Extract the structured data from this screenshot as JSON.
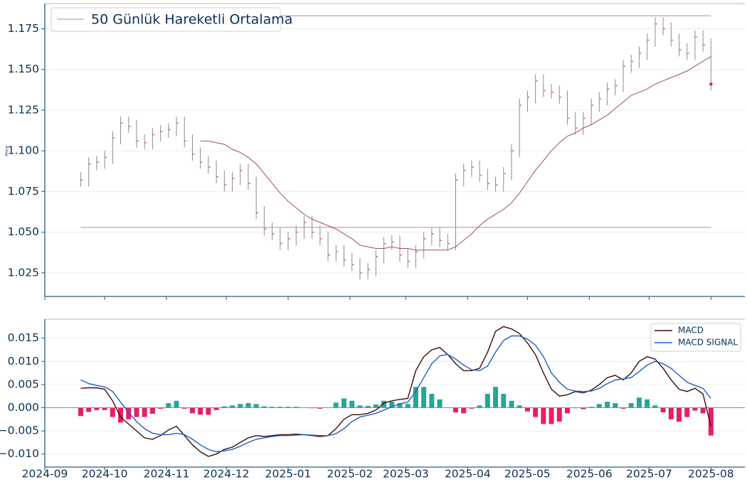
{
  "chart_data": [
    {
      "type": "ohlc",
      "ylabel": "Price",
      "color": "#8c8c8c",
      "close_color": "#d66a8a",
      "last_color": "#e8203f",
      "x": [
        "2024-09-19",
        "2024-09-23",
        "2024-09-27",
        "2024-10-01",
        "2024-10-05",
        "2024-10-09",
        "2024-10-13",
        "2024-10-17",
        "2024-10-21",
        "2024-10-25",
        "2024-10-29",
        "2024-11-02",
        "2024-11-06",
        "2024-11-10",
        "2024-11-14",
        "2024-11-18",
        "2024-11-22",
        "2024-11-26",
        "2024-11-30",
        "2024-12-04",
        "2024-12-08",
        "2024-12-12",
        "2024-12-16",
        "2024-12-20",
        "2024-12-24",
        "2024-12-28",
        "2025-01-01",
        "2025-01-05",
        "2025-01-09",
        "2025-01-13",
        "2025-01-17",
        "2025-01-21",
        "2025-01-25",
        "2025-01-29",
        "2025-02-02",
        "2025-02-06",
        "2025-02-10",
        "2025-02-14",
        "2025-02-18",
        "2025-02-22",
        "2025-02-26",
        "2025-03-02",
        "2025-03-06",
        "2025-03-10",
        "2025-03-14",
        "2025-03-18",
        "2025-03-22",
        "2025-03-26",
        "2025-03-30",
        "2025-04-03",
        "2025-04-07",
        "2025-04-11",
        "2025-04-15",
        "2025-04-19",
        "2025-04-23",
        "2025-04-27",
        "2025-05-01",
        "2025-05-05",
        "2025-05-09",
        "2025-05-13",
        "2025-05-17",
        "2025-05-21",
        "2025-05-25",
        "2025-05-29",
        "2025-06-02",
        "2025-06-06",
        "2025-06-10",
        "2025-06-14",
        "2025-06-18",
        "2025-06-22",
        "2025-06-26",
        "2025-06-30",
        "2025-07-04",
        "2025-07-08",
        "2025-07-12",
        "2025-07-16",
        "2025-07-20",
        "2025-07-24",
        "2025-07-28",
        "2025-08-01"
      ],
      "high": [
        1.087,
        1.096,
        1.097,
        1.1,
        1.112,
        1.121,
        1.121,
        1.119,
        1.11,
        1.114,
        1.116,
        1.117,
        1.121,
        1.121,
        1.11,
        1.102,
        1.097,
        1.094,
        1.088,
        1.087,
        1.092,
        1.092,
        1.084,
        1.066,
        1.056,
        1.053,
        1.05,
        1.054,
        1.06,
        1.06,
        1.054,
        1.05,
        1.042,
        1.042,
        1.037,
        1.034,
        1.031,
        1.039,
        1.047,
        1.048,
        1.048,
        1.04,
        1.042,
        1.05,
        1.053,
        1.053,
        1.049,
        1.086,
        1.092,
        1.094,
        1.094,
        1.089,
        1.084,
        1.09,
        1.104,
        1.132,
        1.137,
        1.147,
        1.147,
        1.141,
        1.14,
        1.137,
        1.124,
        1.124,
        1.132,
        1.136,
        1.142,
        1.144,
        1.156,
        1.159,
        1.164,
        1.172,
        1.182,
        1.182,
        1.179,
        1.172,
        1.166,
        1.174,
        1.174,
        1.169
      ],
      "low": [
        1.078,
        1.078,
        1.088,
        1.089,
        1.092,
        1.104,
        1.111,
        1.102,
        1.101,
        1.101,
        1.106,
        1.108,
        1.109,
        1.102,
        1.094,
        1.089,
        1.086,
        1.08,
        1.075,
        1.075,
        1.079,
        1.076,
        1.058,
        1.048,
        1.045,
        1.039,
        1.039,
        1.042,
        1.046,
        1.046,
        1.042,
        1.032,
        1.032,
        1.029,
        1.026,
        1.021,
        1.021,
        1.023,
        1.031,
        1.039,
        1.032,
        1.028,
        1.028,
        1.034,
        1.042,
        1.041,
        1.039,
        1.039,
        1.078,
        1.084,
        1.081,
        1.076,
        1.075,
        1.075,
        1.082,
        1.096,
        1.124,
        1.129,
        1.133,
        1.132,
        1.129,
        1.116,
        1.11,
        1.11,
        1.116,
        1.124,
        1.128,
        1.134,
        1.136,
        1.148,
        1.151,
        1.156,
        1.164,
        1.171,
        1.164,
        1.158,
        1.156,
        1.156,
        1.161,
        1.137
      ],
      "close": [
        1.082,
        1.092,
        1.093,
        1.096,
        1.108,
        1.117,
        1.115,
        1.106,
        1.105,
        1.11,
        1.112,
        1.113,
        1.117,
        1.106,
        1.098,
        1.093,
        1.09,
        1.084,
        1.079,
        1.083,
        1.088,
        1.08,
        1.062,
        1.052,
        1.049,
        1.043,
        1.046,
        1.05,
        1.056,
        1.05,
        1.046,
        1.036,
        1.038,
        1.033,
        1.03,
        1.025,
        1.027,
        1.035,
        1.043,
        1.044,
        1.036,
        1.032,
        1.038,
        1.046,
        1.049,
        1.045,
        1.043,
        1.082,
        1.088,
        1.09,
        1.085,
        1.08,
        1.079,
        1.086,
        1.1,
        1.128,
        1.133,
        1.143,
        1.137,
        1.136,
        1.133,
        1.12,
        1.114,
        1.12,
        1.128,
        1.132,
        1.138,
        1.14,
        1.152,
        1.155,
        1.16,
        1.168,
        1.178,
        1.175,
        1.168,
        1.162,
        1.16,
        1.17,
        1.165,
        1.141
      ],
      "series": [
        {
          "name": "50 Günlük Hareketli Ortalama",
          "color": "#a24a6e",
          "legend_color": "#b8a8b0",
          "values": [
            null,
            null,
            null,
            null,
            null,
            null,
            null,
            null,
            null,
            null,
            null,
            null,
            null,
            null,
            null,
            1.106,
            1.106,
            1.105,
            1.104,
            1.101,
            1.099,
            1.096,
            1.092,
            1.086,
            1.08,
            1.074,
            1.069,
            1.065,
            1.061,
            1.058,
            1.056,
            1.054,
            1.052,
            1.049,
            1.046,
            1.042,
            1.041,
            1.04,
            1.04,
            1.041,
            1.04,
            1.04,
            1.039,
            1.039,
            1.039,
            1.039,
            1.039,
            1.041,
            1.045,
            1.049,
            1.054,
            1.058,
            1.061,
            1.064,
            1.068,
            1.074,
            1.081,
            1.088,
            1.094,
            1.1,
            1.105,
            1.109,
            1.111,
            1.114,
            1.116,
            1.119,
            1.122,
            1.126,
            1.13,
            1.134,
            1.136,
            1.138,
            1.141,
            1.143,
            1.145,
            1.147,
            1.149,
            1.152,
            1.155,
            1.158
          ]
        }
      ],
      "hlines": [
        1.183,
        1.053
      ],
      "hline_color": "#c9a3b3",
      "ylim": [
        1.0105,
        1.1905
      ],
      "yticks": [
        1.025,
        {
          "value": 1.05,
          "label": "1.050"
        },
        1.075,
        {
          "value": 1.1,
          "label": "1.100"
        },
        1.125,
        {
          "value": 1.15,
          "label": "1.150"
        },
        1.175
      ],
      "grid": true,
      "legend": "upper left"
    },
    {
      "type": "macd",
      "series": [
        {
          "name": "MACD",
          "color": "#3a0c0c",
          "values": [
            0.0042,
            0.0043,
            0.0043,
            0.004,
            0.0015,
            -0.002,
            -0.0035,
            -0.005,
            -0.0065,
            -0.0068,
            -0.006,
            -0.0048,
            -0.004,
            -0.006,
            -0.008,
            -0.0095,
            -0.0105,
            -0.01,
            -0.009,
            -0.0085,
            -0.0075,
            -0.0065,
            -0.006,
            -0.0062,
            -0.006,
            -0.0058,
            -0.0058,
            -0.0057,
            -0.0058,
            -0.006,
            -0.0062,
            -0.006,
            -0.0045,
            -0.0025,
            -0.0015,
            -0.0015,
            -0.0012,
            -0.0005,
            0.001,
            0.0015,
            0.0018,
            0.002,
            0.008,
            0.011,
            0.0125,
            0.013,
            0.0115,
            0.0095,
            0.008,
            0.008,
            0.0085,
            0.012,
            0.0165,
            0.0175,
            0.017,
            0.016,
            0.014,
            0.0115,
            0.0075,
            0.004,
            0.0025,
            0.0028,
            0.0035,
            0.0032,
            0.0038,
            0.005,
            0.0065,
            0.007,
            0.006,
            0.0075,
            0.01,
            0.011,
            0.0105,
            0.0085,
            0.006,
            0.004,
            0.0035,
            0.0042,
            0.003,
            -0.004
          ]
        },
        {
          "name": "MACD SIGNAL",
          "color": "#1f5fbf",
          "values": [
            0.006,
            0.0052,
            0.0048,
            0.0045,
            0.0035,
            0.0012,
            -0.001,
            -0.003,
            -0.0045,
            -0.0055,
            -0.0058,
            -0.0058,
            -0.0055,
            -0.0058,
            -0.0068,
            -0.008,
            -0.009,
            -0.0095,
            -0.0093,
            -0.009,
            -0.0083,
            -0.0075,
            -0.0068,
            -0.0065,
            -0.0062,
            -0.006,
            -0.006,
            -0.0059,
            -0.0058,
            -0.0059,
            -0.006,
            -0.006,
            -0.0056,
            -0.0045,
            -0.003,
            -0.002,
            -0.0016,
            -0.0012,
            -0.0005,
            0.0002,
            0.0008,
            0.0012,
            0.0035,
            0.0065,
            0.0095,
            0.0112,
            0.0115,
            0.0105,
            0.0092,
            0.0082,
            0.008,
            0.009,
            0.012,
            0.0145,
            0.0155,
            0.0155,
            0.0148,
            0.0135,
            0.011,
            0.0075,
            0.0055,
            0.004,
            0.0036,
            0.0035,
            0.0036,
            0.0042,
            0.0052,
            0.006,
            0.0062,
            0.0065,
            0.0078,
            0.0092,
            0.01,
            0.0095,
            0.0085,
            0.007,
            0.0055,
            0.0048,
            0.0042,
            0.002
          ]
        }
      ],
      "histogram": {
        "positive_color": "#26a69a",
        "negative_color": "#e91e63",
        "values": [
          -0.0018,
          -0.0009,
          -0.0005,
          -0.0005,
          -0.002,
          -0.0032,
          -0.0025,
          -0.002,
          -0.002,
          -0.0013,
          -0.0002,
          0.001,
          0.0015,
          -0.0002,
          -0.0012,
          -0.0015,
          -0.0015,
          -0.0005,
          0.0003,
          0.0005,
          0.0008,
          0.001,
          0.0008,
          0.0003,
          0.0002,
          0.0002,
          0.0002,
          0.0002,
          0,
          -0.0001,
          -0.0002,
          0,
          0.0011,
          0.002,
          0.0015,
          0.0005,
          0.0004,
          0.0007,
          0.0015,
          0.0013,
          0.001,
          0.0008,
          0.0045,
          0.0045,
          0.003,
          0.0018,
          0,
          -0.001,
          -0.0012,
          -0.0002,
          0.0005,
          0.003,
          0.0045,
          0.003,
          0.0015,
          0.0005,
          -0.0008,
          -0.002,
          -0.0035,
          -0.0035,
          -0.003,
          -0.0012,
          -0.0001,
          -0.0003,
          0.0002,
          0.0008,
          0.0013,
          0.001,
          -0.0002,
          0.001,
          0.0022,
          0.0018,
          0.0005,
          -0.001,
          -0.0025,
          -0.003,
          -0.002,
          -0.0006,
          -0.0012,
          -0.006
        ]
      },
      "ylim": [
        -0.0128,
        0.0191
      ],
      "yticks": [
        {
          "value": -0.01,
          "label": "−0.010"
        },
        {
          "value": -0.005,
          "label": "−0.005"
        },
        {
          "value": 0,
          "label": "0.000"
        },
        0.005,
        {
          "value": 0.01,
          "label": "0.010"
        },
        0.015
      ],
      "xlim": [
        "2024-09-01",
        "2025-08-18"
      ],
      "xticks": [
        "2024-09",
        "2024-10",
        "2024-11",
        "2024-12",
        "2025-01",
        "2025-02",
        "2025-03",
        "2025-04",
        "2025-05",
        "2025-06",
        "2025-07",
        "2025-08"
      ],
      "grid": true,
      "legend": "upper right"
    }
  ]
}
